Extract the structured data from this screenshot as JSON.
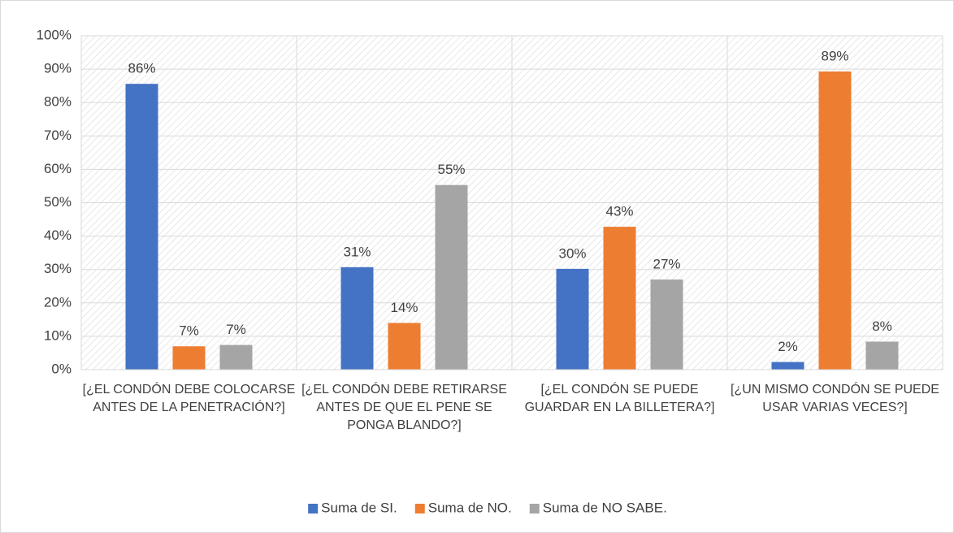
{
  "chart_data": {
    "type": "bar",
    "categories": [
      "[¿EL CONDÓN DEBE COLOCARSE ANTES DE LA PENETRACIÓN?]",
      "[¿EL CONDÓN DEBE RETIRARSE ANTES DE QUE EL PENE SE PONGA BLANDO?]",
      "[¿EL CONDÓN SE PUEDE GUARDAR EN LA BILLETERA?]",
      "[¿UN MISMO CONDÓN SE PUEDE USAR VARIAS VECES?]"
    ],
    "series": [
      {
        "name": "Suma de SI.",
        "color": "#4472c4",
        "values": [
          85.6,
          30.7,
          30.2,
          2.3
        ],
        "value_labels": [
          "86%",
          "31%",
          "30%",
          "2%"
        ]
      },
      {
        "name": "Suma de NO.",
        "color": "#ed7d31",
        "values": [
          7.0,
          14.0,
          42.8,
          89.3
        ],
        "value_labels": [
          "7%",
          "14%",
          "43%",
          "89%"
        ]
      },
      {
        "name": "Suma de NO SABE.",
        "color": "#a5a5a5",
        "values": [
          7.4,
          55.3,
          27.0,
          8.4
        ],
        "value_labels": [
          "7%",
          "55%",
          "27%",
          "8%"
        ]
      }
    ],
    "ylim": [
      0,
      100
    ],
    "yticks": [
      {
        "value": 0,
        "label": "0%"
      },
      {
        "value": 10,
        "label": "10%"
      },
      {
        "value": 20,
        "label": "20%"
      },
      {
        "value": 30,
        "label": "30%"
      },
      {
        "value": 40,
        "label": "40%"
      },
      {
        "value": 50,
        "label": "50%"
      },
      {
        "value": 60,
        "label": "60%"
      },
      {
        "value": 70,
        "label": "70%"
      },
      {
        "value": 80,
        "label": "80%"
      },
      {
        "value": 90,
        "label": "90%"
      },
      {
        "value": 100,
        "label": "100%"
      }
    ],
    "grid": true,
    "legend": "bottom"
  }
}
